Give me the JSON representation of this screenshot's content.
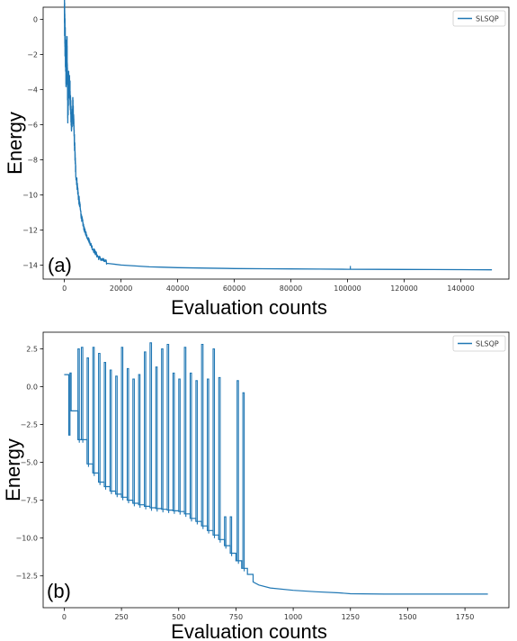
{
  "colors": {
    "series": "#1f77b4",
    "axis": "#000000",
    "legend_border": "#cccccc"
  },
  "chart_data": [
    {
      "type": "line",
      "panel_label": "(a)",
      "xlabel": "Evaluation counts",
      "ylabel": "Energy",
      "legend": "SLSQP",
      "legend_position": "top-right",
      "grid": false,
      "xlim": [
        -7500,
        157000
      ],
      "ylim": [
        -14.8,
        0.7
      ],
      "xticks": [
        0,
        20000,
        40000,
        60000,
        80000,
        100000,
        120000,
        140000
      ],
      "xtick_labels": [
        "0",
        "20000",
        "40000",
        "60000",
        "80000",
        "100000",
        "120000",
        "140000"
      ],
      "yticks": [
        0,
        -2,
        -4,
        -6,
        -8,
        -10,
        -12,
        -14
      ],
      "ytick_labels": [
        "0",
        "−2",
        "−4",
        "−6",
        "−8",
        "−10",
        "−12",
        "−14"
      ],
      "series": [
        {
          "name": "SLSQP",
          "x": [
            0,
            300,
            600,
            900,
            1200,
            1500,
            2000,
            2500,
            3000,
            3500,
            4000,
            5000,
            6000,
            7000,
            8000,
            10000,
            12000,
            15000,
            20000,
            30000,
            40000,
            60000,
            80000,
            100000,
            120000,
            140000,
            151000
          ],
          "y": [
            0.0,
            -1.9,
            -3.4,
            -1.8,
            -5.4,
            -3.9,
            -4.3,
            -6.3,
            -5.0,
            -6.9,
            -8.8,
            -10.2,
            -11.3,
            -12.0,
            -12.4,
            -13.1,
            -13.6,
            -13.9,
            -14.0,
            -14.1,
            -14.15,
            -14.2,
            -14.22,
            -14.24,
            -14.25,
            -14.26,
            -14.27
          ]
        }
      ]
    },
    {
      "type": "line",
      "panel_label": "(b)",
      "xlabel": "Evaluation counts",
      "ylabel": "Energy",
      "legend": "SLSQP",
      "legend_position": "top-right",
      "grid": false,
      "xlim": [
        -92,
        1942
      ],
      "ylim": [
        -14.6,
        3.6
      ],
      "xticks": [
        0,
        250,
        500,
        750,
        1000,
        1250,
        1500,
        1750
      ],
      "xtick_labels": [
        "0",
        "250",
        "500",
        "750",
        "1000",
        "1250",
        "1500",
        "1750"
      ],
      "yticks": [
        2.5,
        0.0,
        -2.5,
        -5.0,
        -7.5,
        -10.0,
        -12.5
      ],
      "ytick_labels": [
        "2.5",
        "0.0",
        "−2.5",
        "−5.0",
        "−7.5",
        "−10.0",
        "−12.5"
      ],
      "series": [
        {
          "name": "SLSQP",
          "x": [
            0,
            15,
            20,
            25,
            30,
            35,
            50,
            60,
            75,
            100,
            125,
            150,
            175,
            200,
            225,
            250,
            275,
            300,
            325,
            350,
            375,
            400,
            425,
            450,
            475,
            500,
            525,
            550,
            575,
            600,
            625,
            650,
            675,
            700,
            725,
            750,
            775,
            800,
            825,
            850,
            900,
            1000,
            1100,
            1200,
            1250,
            1400,
            1600,
            1850
          ],
          "y": [
            0.8,
            0.8,
            -3.2,
            0.9,
            -1.6,
            -1.6,
            -1.6,
            -3.5,
            -3.5,
            -5.1,
            -5.7,
            -6.3,
            -6.6,
            -6.9,
            -7.1,
            -7.3,
            -7.5,
            -7.7,
            -7.8,
            -7.9,
            -8.0,
            -8.05,
            -8.1,
            -8.15,
            -8.2,
            -8.25,
            -8.4,
            -8.7,
            -8.9,
            -9.2,
            -9.5,
            -9.8,
            -10.1,
            -10.5,
            -11.0,
            -11.5,
            -12.0,
            -12.4,
            -12.9,
            -13.1,
            -13.3,
            -13.45,
            -13.55,
            -13.62,
            -13.68,
            -13.7,
            -13.7,
            -13.7
          ],
          "spikes": [
            {
              "x": 60,
              "top": 2.5
            },
            {
              "x": 75,
              "top": 2.6
            },
            {
              "x": 100,
              "top": 1.9
            },
            {
              "x": 125,
              "top": 2.6
            },
            {
              "x": 150,
              "top": 2.2
            },
            {
              "x": 175,
              "top": 1.6
            },
            {
              "x": 200,
              "top": 1.1
            },
            {
              "x": 225,
              "top": 0.7
            },
            {
              "x": 250,
              "top": 2.6
            },
            {
              "x": 275,
              "top": 1.2
            },
            {
              "x": 300,
              "top": 0.5
            },
            {
              "x": 325,
              "top": 0.8
            },
            {
              "x": 350,
              "top": 2.3
            },
            {
              "x": 375,
              "top": 2.9
            },
            {
              "x": 400,
              "top": 1.3
            },
            {
              "x": 425,
              "top": 2.5
            },
            {
              "x": 450,
              "top": 2.8
            },
            {
              "x": 475,
              "top": 0.9
            },
            {
              "x": 500,
              "top": 0.5
            },
            {
              "x": 525,
              "top": 2.6
            },
            {
              "x": 550,
              "top": 0.9
            },
            {
              "x": 575,
              "top": 0.4
            },
            {
              "x": 600,
              "top": 2.8
            },
            {
              "x": 625,
              "top": 0.5
            },
            {
              "x": 650,
              "top": 2.5
            },
            {
              "x": 675,
              "top": 0.6
            },
            {
              "x": 700,
              "top": -8.6
            },
            {
              "x": 725,
              "top": -8.6
            },
            {
              "x": 755,
              "top": 0.4
            },
            {
              "x": 780,
              "top": -0.4
            }
          ]
        }
      ]
    }
  ]
}
